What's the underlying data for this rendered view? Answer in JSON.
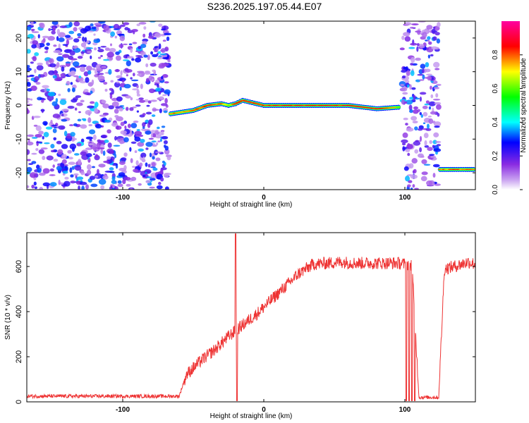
{
  "title": "S236.2025.197.05.44.E07",
  "chart_data": [
    {
      "type": "heatmap",
      "xlabel": "Height of straight line (km)",
      "ylabel": "Frequency (Hz)",
      "xlim": [
        -168,
        150
      ],
      "ylim": [
        -25,
        25
      ],
      "xticks": [
        -100,
        0,
        100
      ],
      "yticks": [
        -20,
        -10,
        0,
        10,
        20
      ],
      "grid": false,
      "colorbar": {
        "label": "Normalized spectral amplitude",
        "range": [
          0,
          1
        ],
        "ticks": [
          0.0,
          0.2,
          0.4,
          0.6,
          0.8
        ],
        "colors": [
          "#ffffff",
          "#8a2be2",
          "#0000ff",
          "#00ffff",
          "#00ff00",
          "#ffff00",
          "#ff0000",
          "#ff00a0"
        ]
      },
      "signal_track": {
        "x": [
          -66,
          -50,
          -40,
          -30,
          -25,
          -20,
          -15,
          -10,
          -5,
          0,
          20,
          40,
          60,
          80,
          97
        ],
        "y": [
          -2.5,
          -1.5,
          0.0,
          0.5,
          0.0,
          0.5,
          1.5,
          1.0,
          0.5,
          0.0,
          0.0,
          0.0,
          0.0,
          -1.0,
          -0.5
        ],
        "strength": [
          0.75,
          0.7,
          0.8,
          0.75,
          0.6,
          0.75,
          0.85,
          0.9,
          0.85,
          0.9,
          0.9,
          0.9,
          0.9,
          0.85,
          0.6
        ]
      },
      "signal_track_2": {
        "x": [
          125,
          135,
          143,
          150
        ],
        "y": [
          -19,
          -19,
          -19,
          -19
        ],
        "strength": [
          0.7,
          0.75,
          0.75,
          0.7
        ]
      },
      "noise_regions": [
        [
          -168,
          -67
        ],
        [
          98,
          124
        ]
      ]
    },
    {
      "type": "line",
      "xlabel": "Height of straight line (km)",
      "ylabel": "SNR (10 * v/v)",
      "xlim": [
        -168,
        150
      ],
      "ylim": [
        0,
        750
      ],
      "xticks": [
        -100,
        0,
        100
      ],
      "yticks": [
        0,
        200,
        400,
        600
      ],
      "grid": false,
      "series": [
        {
          "color": "#ee3333",
          "x": [
            -168,
            -60,
            -55,
            -45,
            -35,
            -25,
            -15,
            -5,
            5,
            15,
            25,
            35,
            45,
            55,
            65,
            75,
            85,
            95,
            100,
            105,
            110,
            115,
            120,
            124,
            128,
            135,
            145,
            150
          ],
          "y": [
            25,
            25,
            120,
            180,
            230,
            290,
            340,
            390,
            450,
            510,
            570,
            610,
            615,
            620,
            615,
            615,
            615,
            615,
            610,
            610,
            20,
            20,
            20,
            20,
            590,
            600,
            620,
            610
          ]
        }
      ],
      "spikes_down": [
        -19,
        101,
        103,
        105,
        107
      ],
      "spikes_up": [
        -20
      ]
    }
  ]
}
